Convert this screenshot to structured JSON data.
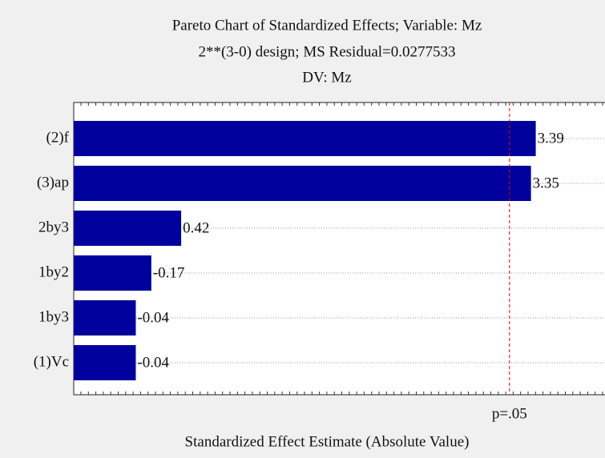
{
  "chart_data": {
    "type": "bar",
    "orientation": "horizontal",
    "title": "Pareto Chart of Standardized Effects; Variable: Mz",
    "subtitle": [
      "2**(3-0) design; MS Residual=0.0277533",
      "DV: Mz"
    ],
    "xlabel": "Standardized Effect Estimate (Absolute Value)",
    "categories": [
      "(2)f",
      "(3)ap",
      "2by3",
      "1by2",
      "1by3",
      "(1)Vc"
    ],
    "values": [
      3.39,
      3.35,
      0.42,
      -0.17,
      -0.04,
      -0.04
    ],
    "color": "#00009c",
    "xlim": [
      -0.48,
      3.97
    ],
    "reference_line": {
      "value": 3.17,
      "label": "p=.05",
      "color": "#e00000"
    },
    "grid": true
  }
}
